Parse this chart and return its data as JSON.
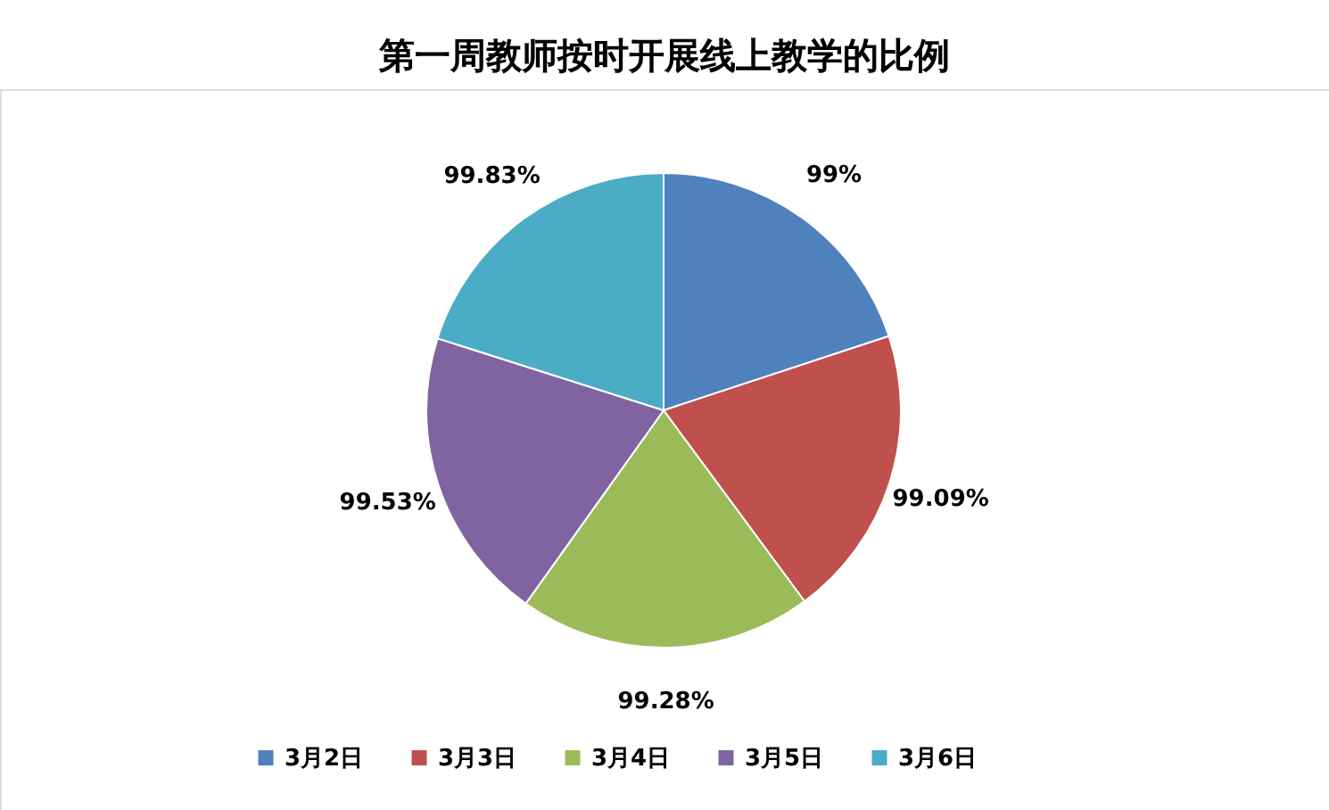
{
  "chart_data": {
    "type": "pie",
    "title": "第一周教师按时开展线上教学的比例",
    "categories": [
      "3月2日",
      "3月3日",
      "3月4日",
      "3月5日",
      "3月6日"
    ],
    "values": [
      99,
      99.09,
      99.28,
      99.53,
      99.83
    ],
    "value_labels": [
      "99%",
      "99.09%",
      "99.28%",
      "99.53%",
      "99.83%"
    ],
    "colors": [
      "#4f81bd",
      "#c0504d",
      "#9bbb59",
      "#8064a2",
      "#4bacc6"
    ],
    "legend": "bottom"
  }
}
